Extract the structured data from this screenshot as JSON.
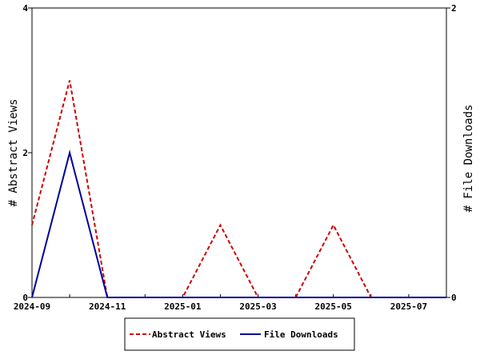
{
  "chart_data": {
    "type": "line",
    "y_left_label": "# Abstract Views",
    "y_right_label": "# File Downloads",
    "x": [
      "2024-09",
      "2024-10",
      "2024-11",
      "2024-12",
      "2025-01",
      "2025-02",
      "2025-03",
      "2025-04",
      "2025-05",
      "2025-06",
      "2025-07",
      "2025-08"
    ],
    "x_tick_labels": [
      "2024-09",
      "2024-11",
      "2025-01",
      "2025-03",
      "2025-05",
      "2025-07"
    ],
    "y_left_ticks": [
      "0",
      "2",
      "4"
    ],
    "y_right_ticks": [
      "0",
      "2"
    ],
    "ylim_left": [
      0,
      4
    ],
    "ylim_right": [
      0,
      2
    ],
    "series": [
      {
        "name": "Abstract Views",
        "axis": "left",
        "color": "#cc0000",
        "style": "dashed",
        "values": [
          1,
          3,
          0,
          0,
          0,
          1,
          0,
          0,
          1,
          0,
          0,
          0
        ]
      },
      {
        "name": "File Downloads",
        "axis": "right",
        "color": "#000099",
        "style": "solid",
        "values": [
          0,
          1,
          0,
          0,
          0,
          0,
          0,
          0,
          0,
          0,
          0,
          0
        ]
      }
    ],
    "legend_position": "bottom",
    "grid": false
  }
}
